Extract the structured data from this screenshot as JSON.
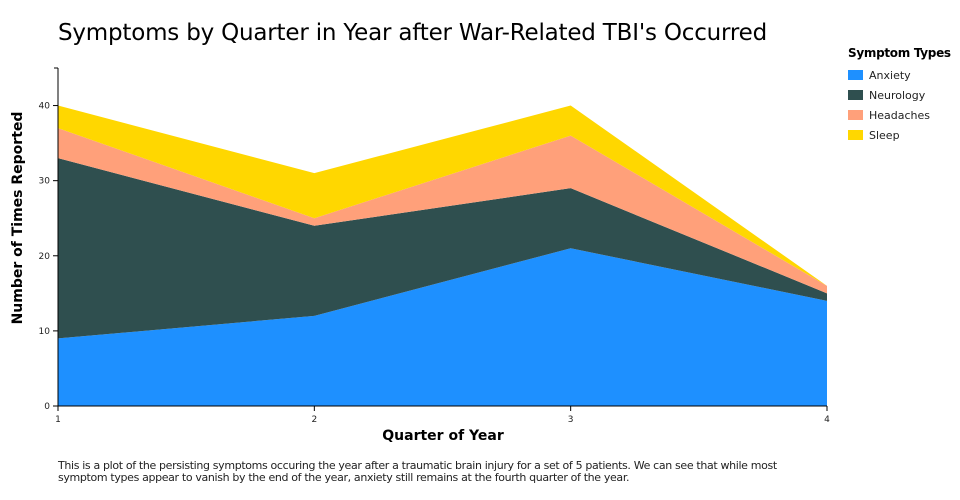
{
  "chart_data": {
    "type": "area",
    "stacked": true,
    "title": "Symptoms by Quarter in Year after War-Related TBI's Occurred",
    "xlabel": "Quarter of Year",
    "ylabel": "Number of Times Reported",
    "x": [
      1,
      2,
      3,
      4
    ],
    "x_tick_labels": [
      "1",
      "2",
      "3",
      "4"
    ],
    "y_tick_labels": [
      "0",
      "10",
      "20",
      "30",
      "40"
    ],
    "y_ticks": [
      0,
      10,
      20,
      30,
      40
    ],
    "xlim": [
      1,
      4
    ],
    "ylim": [
      0,
      45
    ],
    "grid": false,
    "legend": {
      "title": "Symptom Types",
      "placement": "right"
    },
    "series": [
      {
        "name": "Anxiety",
        "color": "#1E90FF",
        "values": [
          9,
          12,
          21,
          14
        ]
      },
      {
        "name": "Neurology",
        "color": "#2F4F4F",
        "values": [
          24,
          12,
          8,
          1
        ]
      },
      {
        "name": "Headaches",
        "color": "#FFA07A",
        "values": [
          4,
          1,
          7,
          1
        ]
      },
      {
        "name": "Sleep",
        "color": "#FFD700",
        "values": [
          3,
          6,
          4,
          0
        ]
      }
    ]
  },
  "caption": "This is a plot of the persisting symptoms occuring the year after a traumatic brain injury for a set of 5 patients. We can see that while most symptom types appear to vanish by the end of the year, anxiety still remains at the fourth quarter of the year."
}
